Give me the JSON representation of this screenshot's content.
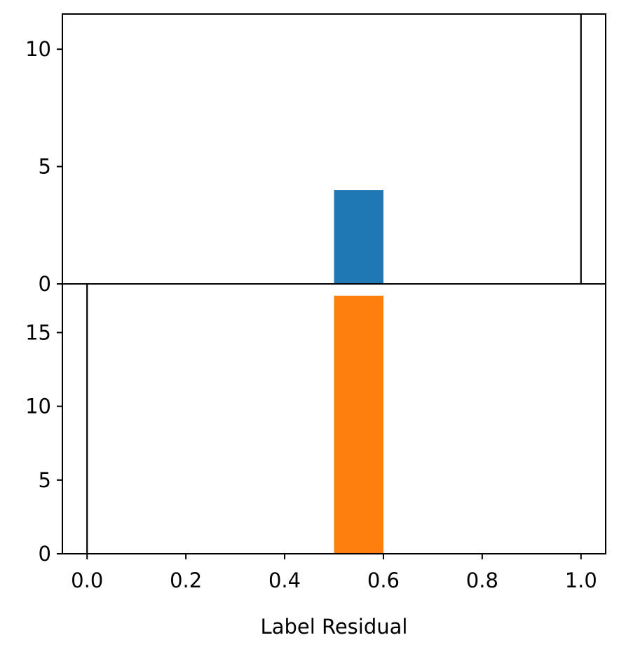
{
  "chart_data": {
    "type": "bar",
    "xlabel": "Label Residual",
    "xlim": [
      -0.05,
      1.05
    ],
    "x_ticks": [
      "0.0",
      "0.2",
      "0.4",
      "0.6",
      "0.8",
      "1.0"
    ],
    "panels": [
      {
        "name": "",
        "color": "#1f77b4",
        "ylim": [
          0,
          11.5
        ],
        "y_ticks": [
          "0",
          "5",
          "10"
        ],
        "bars": [
          {
            "x0": 0.5,
            "x1": 0.6,
            "value": 4
          }
        ],
        "vline_x": 1.0
      },
      {
        "name": "",
        "color": "#ff7f0e",
        "ylim": [
          0,
          18.3
        ],
        "y_ticks": [
          "0",
          "5",
          "10",
          "15"
        ],
        "bars": [
          {
            "x0": 0.5,
            "x1": 0.6,
            "value": 17.5
          }
        ],
        "vline_x": 0.0
      }
    ]
  }
}
